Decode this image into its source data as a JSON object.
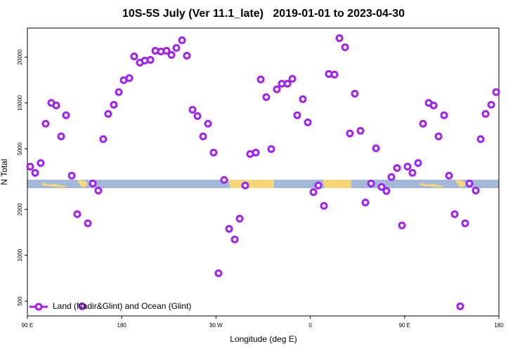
{
  "chart_data": {
    "type": "scatter",
    "title": "10S-5S July (Ver 11.1_late)   2019-01-01 to 2023-04-30",
    "xlabel": "Longitude (deg E)",
    "ylabel": "N Total",
    "log_y": true,
    "legend": "lower left",
    "xlim": [
      90,
      540
    ],
    "ylim": [
      400,
      31000
    ],
    "xticks": [
      {
        "value": 90,
        "label": "90 E"
      },
      180,
      {
        "value": 270,
        "label": "90 W"
      },
      {
        "value": 360,
        "label": "0"
      },
      {
        "value": 450,
        "label": "90 E"
      },
      {
        "value": 540,
        "label": "180"
      }
    ],
    "yticks": [
      500,
      1000,
      2000,
      5000,
      10000,
      20000
    ],
    "x": [
      92.7,
      97.4,
      102.7,
      107.4,
      112.8,
      117.5,
      122.2,
      126.9,
      132.3,
      137.6,
      142.3,
      147.7,
      152.4,
      157.7,
      162.4,
      167.1,
      172.5,
      177.2,
      181.9,
      187.3,
      191.9,
      197.3,
      202.0,
      207.4,
      212.1,
      217.4,
      222.8,
      227.5,
      232.2,
      237.6,
      242.2,
      247.6,
      252.3,
      257.7,
      262.4,
      267.7,
      272.4,
      277.8,
      282.5,
      287.9,
      292.6,
      297.9,
      302.6,
      308.0,
      312.7,
      318.0,
      322.7,
      328.1,
      332.8,
      338.2,
      342.9,
      347.5,
      352.9,
      357.6,
      363.0,
      367.7,
      373.0,
      377.7,
      383.1,
      387.8,
      393.2,
      397.8,
      402.5,
      407.9,
      412.6,
      418.0,
      422.7,
      428.0,
      432.7,
      437.4,
      442.8,
      447.5,
      452.8,
      457.5,
      462.9,
      467.6,
      473.0,
      477.7,
      482.4,
      487.7,
      492.4,
      497.8,
      503.1,
      507.8,
      511.9,
      517.9,
      522.6,
      527.3,
      532.7,
      537.4
    ],
    "series": [
      {
        "name": "Land (Nadir&Glint) and Ocean (Glint)",
        "color": "#a020f0",
        "values": [
          3820,
          3475,
          4030,
          7300,
          10000,
          9620,
          6030,
          8300,
          3330,
          1860,
          462,
          1620,
          2960,
          2660,
          5780,
          8470,
          9730,
          11780,
          14100,
          14550,
          20200,
          18380,
          18950,
          19170,
          22000,
          21760,
          22000,
          20650,
          22960,
          25800,
          20420,
          9020,
          8200,
          6030,
          7300,
          4720,
          762,
          3125,
          1490,
          1270,
          1740,
          2870,
          4620,
          4720,
          14260,
          10920,
          4980,
          12280,
          13370,
          13370,
          14400,
          8300,
          10590,
          7450,
          2600,
          2870,
          2110,
          15500,
          15340,
          26600,
          23200,
          6300,
          11500,
          6560,
          2220,
          2960,
          5040,
          2810,
          2640,
          3260,
          3740,
          1570,
          3820,
          3475,
          4030,
          7300,
          10000,
          9620,
          6030,
          8300,
          3330,
          1860,
          462,
          1620,
          2960,
          2660,
          5780,
          8470,
          9730,
          11780
        ]
      }
    ]
  }
}
